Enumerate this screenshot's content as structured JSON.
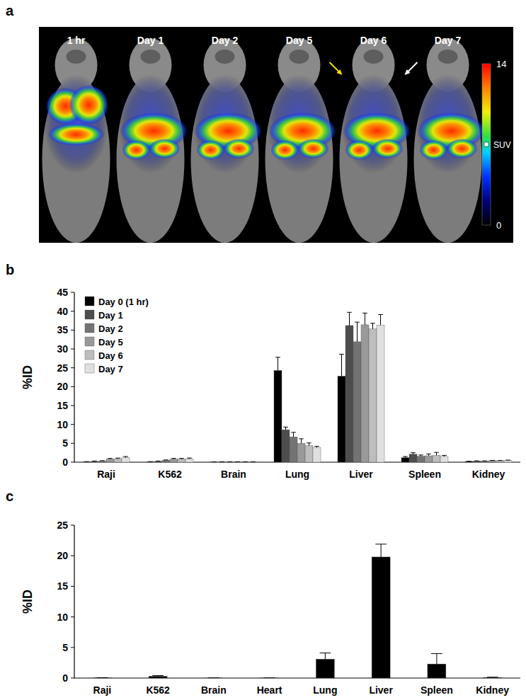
{
  "panel_labels": [
    "a",
    "b",
    "c"
  ],
  "panel_a": {
    "time_points": [
      "1 hr",
      "Day 1",
      "Day 2",
      "Day 5",
      "Day 6",
      "Day 7"
    ],
    "colorbar": {
      "title": "SUV",
      "range": [
        0,
        14
      ],
      "ticks": [
        0,
        14
      ]
    }
  },
  "chart_data": [
    {
      "type": "bar",
      "y_label": "%ID",
      "categories": [
        "Raji",
        "K562",
        "Brain",
        "Lung",
        "Liver",
        "Spleen",
        "Kidney"
      ],
      "ylim": [
        0,
        45
      ],
      "yticks": [
        0,
        5,
        10,
        15,
        20,
        25,
        30,
        35,
        40,
        45
      ],
      "grid": false,
      "legend": "upper left",
      "series": [
        {
          "name": "Day 0 (1 hr)",
          "color": "#000000",
          "values": [
            0.1,
            0.1,
            0.05,
            24.3,
            22.8,
            1.2,
            0.2
          ],
          "errors": [
            0.05,
            0.05,
            0.02,
            3.5,
            5.8,
            0.3,
            0.05
          ]
        },
        {
          "name": "Day 1",
          "color": "#4d4d4d",
          "values": [
            0.2,
            0.2,
            0.1,
            8.6,
            36.2,
            2.1,
            0.3
          ],
          "errors": [
            0.1,
            0.1,
            0.02,
            0.7,
            3.5,
            0.4,
            0.05
          ]
        },
        {
          "name": "Day 2",
          "color": "#737373",
          "values": [
            0.3,
            0.5,
            0.1,
            6.7,
            31.9,
            1.6,
            0.3
          ],
          "errors": [
            0.1,
            0.1,
            0.02,
            1.2,
            5.2,
            0.3,
            0.05
          ]
        },
        {
          "name": "Day 5",
          "color": "#999999",
          "values": [
            0.8,
            0.8,
            0.1,
            5.0,
            36.4,
            1.7,
            0.4
          ],
          "errors": [
            0.2,
            0.2,
            0.02,
            1.2,
            3.1,
            0.5,
            0.05
          ]
        },
        {
          "name": "Day 6",
          "color": "#bdbdbd",
          "values": [
            0.9,
            0.8,
            0.1,
            4.4,
            35.3,
            1.8,
            0.4
          ],
          "errors": [
            0.2,
            0.2,
            0.02,
            0.7,
            1.5,
            0.8,
            0.05
          ]
        },
        {
          "name": "Day 7",
          "color": "#e0e0e0",
          "values": [
            1.2,
            0.9,
            0.1,
            3.9,
            36.3,
            1.5,
            0.5
          ],
          "errors": [
            0.3,
            0.2,
            0.02,
            0.3,
            2.8,
            0.3,
            0.05
          ]
        }
      ]
    },
    {
      "type": "bar",
      "y_label": "%ID",
      "categories": [
        "Raji",
        "K562",
        "Brain",
        "Heart",
        "Lung",
        "Liver",
        "Spleen",
        "Kidney"
      ],
      "ylim": [
        0,
        25
      ],
      "yticks": [
        0,
        5,
        10,
        15,
        20,
        25
      ],
      "grid": false,
      "color": "#000000",
      "values": [
        0.05,
        0.3,
        0.02,
        0.02,
        3.1,
        19.8,
        2.3,
        0.1
      ],
      "errors": [
        0.02,
        0.1,
        0.01,
        0.01,
        1.0,
        2.1,
        1.7,
        0.05
      ]
    }
  ]
}
